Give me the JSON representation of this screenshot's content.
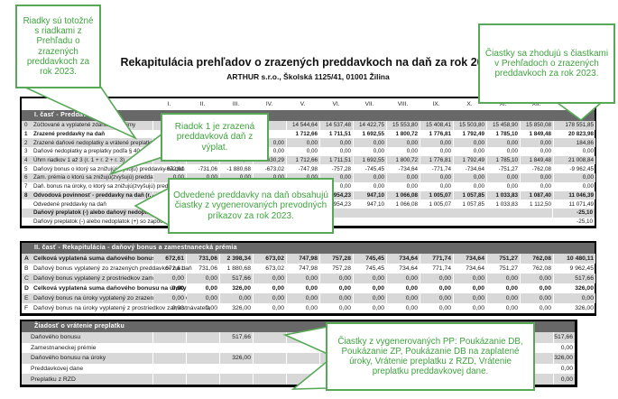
{
  "colors": {
    "callout_green": "#57A957",
    "callout_text": "#3EA33E",
    "bar_gray": "#686868",
    "shade_gray": "#D8D8D8"
  },
  "callouts": {
    "top_left": {
      "text": "Riadky sú totožné s riadkami z Prehľadu o zrazených preddavkoch za rok 2023."
    },
    "top_right": {
      "text": "Čiastky sa zhodujú s čiastkami v Prehľadoch o zrazených preddavkoch za rok 2023."
    },
    "riadok1": {
      "text": "Riadok 1 je zrazená preddavková daň z výplat."
    },
    "odvedene": {
      "text": "Odvedené preddavky na daň obsahujú čiastky z vygenerovaných prevodných príkazov za rok 2023."
    },
    "bottom": {
      "text": "Čiastky z vygenerovaných PP: Poukázanie DB, Poukázanie ZP, Poukázanie DB na zaplatené úroky, Vrátenie preplatku z RZD, Vrátenie preplatku preddavkovej dane."
    }
  },
  "document": {
    "title": "Rekapitulácia prehľadov o zrazených preddavkoch na daň za rok 2023",
    "subtitle": "ARTHUR s.r.o., Školská 1125/41, 01001 Žilina",
    "columns": [
      "I.",
      "II.",
      "III.",
      "IV.",
      "V.",
      "VI.",
      "VII.",
      "VIII.",
      "IX.",
      "X.",
      "XI.",
      "XII."
    ],
    "part1": {
      "header": "I. časť - Preddavky na daň",
      "rows": [
        {
          "num": "0",
          "label": "Zúčtované a vyplatené zdaniteľné príjmy",
          "bold": false,
          "values": [
            "",
            "",
            "",
            "",
            "14 544,64",
            "14 537,48",
            "14 422,75",
            "15 553,80",
            "15 408,41",
            "15 503,80",
            "15 458,90",
            "15 850,08"
          ],
          "total": "178 551,85"
        },
        {
          "num": "1",
          "label": "Zrazené preddavky na daň",
          "bold": true,
          "values": [
            "",
            "",
            "",
            "",
            "1 712,66",
            "1 711,51",
            "1 692,55",
            "1 800,72",
            "1 776,81",
            "1 792,49",
            "1 785,10",
            "1 849,48"
          ],
          "total": "20 823,98"
        },
        {
          "num": "2",
          "label": "Zrazené daňové nedoplatky a vrátené preplatky z RZD",
          "bold": false,
          "values": [
            "",
            "",
            "",
            "0,00",
            "0,00",
            "0,00",
            "0,00",
            "0,00",
            "0,00",
            "0,00",
            "0,00",
            "0,00"
          ],
          "total": "184,86"
        },
        {
          "num": "3",
          "label": "Daňové nedoplatky a preplatky podľa § 40 zákona",
          "bold": false,
          "values": [
            "",
            "",
            "",
            "0,00",
            "0,00",
            "0,00",
            "0,00",
            "0,00",
            "0,00",
            "0,00",
            "0,00",
            "0,00"
          ],
          "total": "0,00"
        },
        {
          "num": "4",
          "label": "Úhrn riadkov 1 až 3 (r. 1 + r. 2 + r. 3)",
          "bold": false,
          "values": [
            "1 702,12",
            "1 674,43",
            "1 880,68",
            "1 630,29",
            "1 712,66",
            "1 711,51",
            "1 692,55",
            "1 800,72",
            "1 776,81",
            "1 792,49",
            "1 785,10",
            "1 849,48"
          ],
          "total": "21 008,84"
        },
        {
          "num": "5",
          "label": "Daňový bonus o ktorý sa znižujú(zvyšujú) preddavky na daň",
          "bold": false,
          "values": [
            "-672,61",
            "-731,06",
            "-1 880,68",
            "-673,02",
            "-747,98",
            "-757,28",
            "-745,45",
            "-734,64",
            "-771,74",
            "-734,64",
            "-751,27",
            "-762,08"
          ],
          "total": "-9 962,45"
        },
        {
          "num": "6",
          "label": "Zam. prémia o ktorú sa znižujú(zvyšujú) preddavky na daň",
          "bold": false,
          "values": [
            "0,00",
            "0,00",
            "0,00",
            "0,00",
            "0,00",
            "0,00",
            "0,00",
            "0,00",
            "0,00",
            "0,00",
            "0,00",
            "0,00"
          ],
          "total": "0,00"
        },
        {
          "num": "7",
          "label": "Daň. bonus na úroky, o ktorý sa znižujú(zvyšujú) preddavky na daň",
          "bold": false,
          "values": [
            "0,00",
            "0,00",
            "0,00",
            "0,00",
            "0,00",
            "0,00",
            "0,00",
            "0,00",
            "0,00",
            "0,00",
            "0,00",
            "0,00"
          ],
          "total": "0,00"
        },
        {
          "num": "8",
          "label": "Odvodová povinnosť - preddavky na daň (r. 4 ± r. 5 ± r. 6 ± r. 7)",
          "bold": true,
          "values": [
            "1 029,51",
            "943,37",
            "0,00",
            "957,27",
            "964,68",
            "954,23",
            "947,10",
            "1 066,08",
            "1 005,07",
            "1 057,85",
            "1 033,83",
            "1 087,40"
          ],
          "total": "11 046,39"
        },
        {
          "num": "",
          "label": "Odvedené preddavky na daň",
          "bold": false,
          "values": [
            "1 029,51",
            "943,37",
            "0,00",
            "957,27",
            "964,68",
            "954,23",
            "947,10",
            "1 066,08",
            "1 005,07",
            "1 057,85",
            "1 033,83",
            "1 112,50"
          ],
          "total": "11 071,49"
        },
        {
          "num": "",
          "label": "Daňový preplatok (-) alebo daňový nedoplatok (+)",
          "bold": true,
          "no_cells": true,
          "values": [],
          "total": "-25,10"
        },
        {
          "num": "",
          "label": "Daňový preplatok (-) alebo nedoplatok (+) so započítaním vrátených preplatkov preddavkovej dane",
          "bold": false,
          "no_cells": true,
          "values": [],
          "total": "-25,10"
        }
      ]
    },
    "part2": {
      "header": "II. časť - Rekapitulácia - daňový bonus a zamestnanecká prémia",
      "rows": [
        {
          "num": "A",
          "label": "Celková vyplatená suma daňového bonusu",
          "bold": true,
          "values": [
            "672,61",
            "731,06",
            "2 398,34",
            "673,02",
            "747,98",
            "757,28",
            "745,45",
            "734,64",
            "771,74",
            "734,64",
            "751,27",
            "762,08"
          ],
          "total": "10 480,11"
        },
        {
          "num": "B",
          "label": "Daňový bonus vyplatený zo zrazených preddavkov na daň",
          "bold": false,
          "values": [
            "672,61",
            "731,06",
            "1 880,68",
            "673,02",
            "747,98",
            "757,28",
            "745,45",
            "734,64",
            "771,74",
            "734,64",
            "751,27",
            "762,08"
          ],
          "total": "9 962,45"
        },
        {
          "num": "C",
          "label": "Daňový bonus vyplatený z prostriedkov zamestnávateľa",
          "bold": false,
          "values": [
            "0,00",
            "0,00",
            "517,66",
            "0,00",
            "0,00",
            "0,00",
            "0,00",
            "0,00",
            "0,00",
            "0,00",
            "0,00",
            "0,00"
          ],
          "total": "517,66"
        },
        {
          "num": "D",
          "label": "Celková vyplatená suma daňového bonusu na úroky",
          "bold": true,
          "values": [
            "0,00",
            "0,00",
            "326,00",
            "0,00",
            "0,00",
            "0,00",
            "0,00",
            "0,00",
            "0,00",
            "0,00",
            "0,00",
            "0,00"
          ],
          "total": "326,00"
        },
        {
          "num": "E",
          "label": "Daňový bonus na úroky vyplatený zo zrazených preddavkov na daň",
          "bold": false,
          "values": [
            "0,00",
            "0,00",
            "0,00",
            "0,00",
            "0,00",
            "0,00",
            "0,00",
            "0,00",
            "0,00",
            "0,00",
            "0,00",
            "0,00"
          ],
          "total": "0,00"
        },
        {
          "num": "F",
          "label": "Daňový bonus na úroky vyplatený z prostriedkov zamestnávateľa",
          "bold": false,
          "values": [
            "0,00",
            "0,00",
            "326,00",
            "0,00",
            "0,00",
            "0,00",
            "0,00",
            "0,00",
            "0,00",
            "0,00",
            "0,00",
            "0,00"
          ],
          "total": "326,00"
        }
      ]
    },
    "part3": {
      "header": "Žiadosť o vrátenie preplatku",
      "rows": [
        {
          "label": "Daňového bonusu",
          "bold": false,
          "values": [
            "",
            "",
            "517,66",
            "",
            "",
            "",
            "",
            "",
            "",
            "",
            "",
            ""
          ],
          "total": "517,66"
        },
        {
          "label": "Zamestnaneckej prémie",
          "bold": false,
          "values": [
            "",
            "",
            "",
            "",
            "",
            "",
            "",
            "",
            "",
            "",
            "",
            ""
          ],
          "total": "0,00"
        },
        {
          "label": "Daňového bonusu na úroky",
          "bold": false,
          "values": [
            "",
            "",
            "326,00",
            "",
            "",
            "",
            "",
            "",
            "",
            "",
            "",
            ""
          ],
          "total": "326,00"
        },
        {
          "label": "Preddavkovej dane",
          "bold": false,
          "values": [
            "",
            "",
            "",
            "",
            "",
            "",
            "",
            "",
            "",
            "",
            "",
            ""
          ],
          "total": "0,00"
        },
        {
          "label": "Preplatku z RZD",
          "bold": false,
          "values": [
            "",
            "",
            "",
            "",
            "",
            "",
            "",
            "",
            "",
            "",
            "",
            ""
          ],
          "total": "0,00"
        }
      ]
    }
  }
}
